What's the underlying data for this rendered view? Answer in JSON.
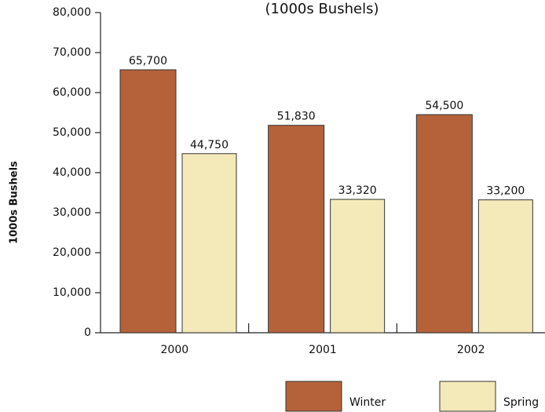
{
  "chart_data": {
    "type": "bar",
    "title": "(1000s Bushels)",
    "y_axis_label": "1000s Bushels",
    "categories": [
      "2000",
      "2001",
      "2002"
    ],
    "series": [
      {
        "name": "Winter",
        "color": "#b5623a",
        "values": [
          65700,
          51830,
          54500
        ],
        "value_labels": [
          "65,700",
          "51,830",
          "54,500"
        ]
      },
      {
        "name": "Spring",
        "color": "#f4e9b8",
        "values": [
          44750,
          33320,
          33200
        ],
        "value_labels": [
          "44,750",
          "33,320",
          "33,200"
        ]
      }
    ],
    "ylim": [
      0,
      80000
    ],
    "yticks": [
      0,
      {
        "value": 10000,
        "label": "10,000"
      },
      {
        "value": 20000,
        "label": "20,000"
      },
      {
        "value": 30000,
        "label": "30,000"
      },
      {
        "value": 40000,
        "label": "40,000"
      },
      {
        "value": 50000,
        "label": "50,000"
      },
      {
        "value": 60000,
        "label": "60,000"
      },
      {
        "value": 70000,
        "label": "70,000"
      },
      {
        "value": 80000,
        "label": "80,000"
      }
    ],
    "legend": "bottom-right"
  }
}
